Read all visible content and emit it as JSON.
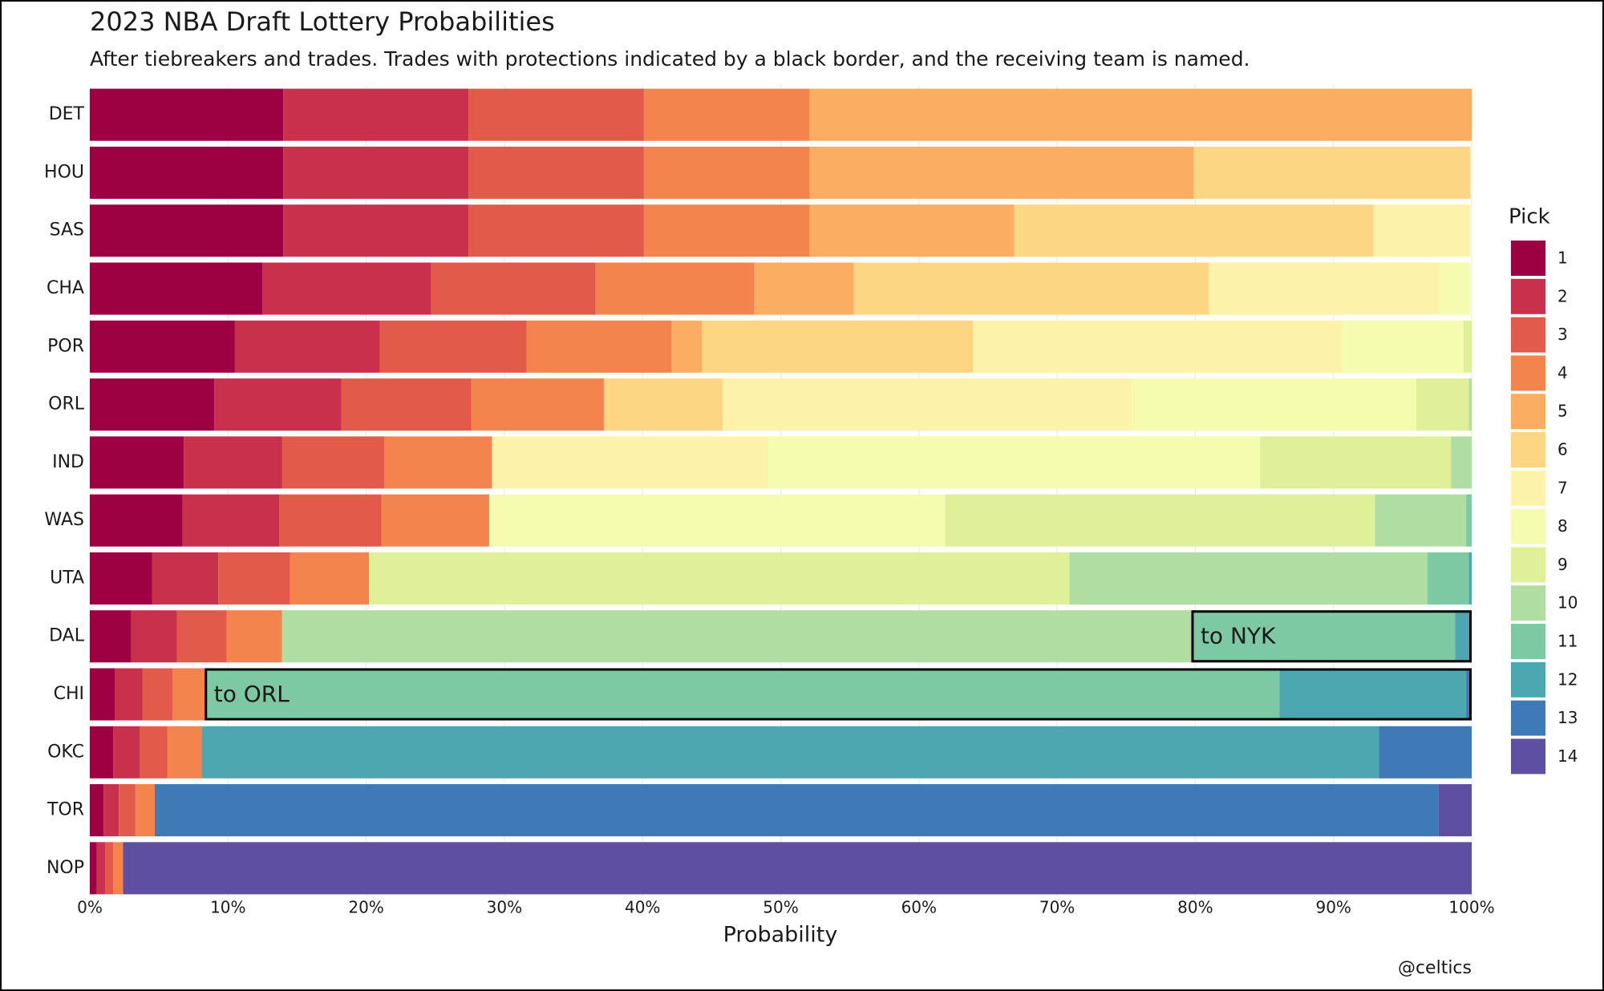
{
  "chart_data": {
    "type": "stacked_barh",
    "title": "2023 NBA Draft Lottery Probabilities",
    "subtitle": "After tiebreakers and trades. Trades with protections indicated by a black border, and the receiving team is named.",
    "x_label": "Probability",
    "credit": "@celtics",
    "legend_title": "Pick",
    "legend_position": "right",
    "grid": true,
    "xlim": [
      0,
      100
    ],
    "xticks": [
      {
        "value": 0,
        "label": "0%"
      },
      {
        "value": 10,
        "label": "10%"
      },
      {
        "value": 20,
        "label": "20%"
      },
      {
        "value": 30,
        "label": "30%"
      },
      {
        "value": 40,
        "label": "40%"
      },
      {
        "value": 50,
        "label": "50%"
      },
      {
        "value": 60,
        "label": "60%"
      },
      {
        "value": 70,
        "label": "70%"
      },
      {
        "value": 80,
        "label": "80%"
      },
      {
        "value": 90,
        "label": "90%"
      },
      {
        "value": 100,
        "label": "100%"
      }
    ],
    "categories": [
      "DET",
      "HOU",
      "SAS",
      "CHA",
      "POR",
      "ORL",
      "IND",
      "WAS",
      "UTA",
      "DAL",
      "CHI",
      "OKC",
      "TOR",
      "NOP"
    ],
    "series": [
      {
        "name": "1",
        "color": "#9e0142",
        "values": [
          14.0,
          14.0,
          14.0,
          12.5,
          10.5,
          9.0,
          6.8,
          6.7,
          4.5,
          3.0,
          1.8,
          1.7,
          1.0,
          0.5
        ]
      },
      {
        "name": "2",
        "color": "#c8304b",
        "values": [
          13.4,
          13.4,
          13.4,
          12.2,
          10.5,
          9.2,
          7.1,
          7.0,
          4.8,
          3.3,
          2.0,
          1.9,
          1.1,
          0.6
        ]
      },
      {
        "name": "3",
        "color": "#e25a4a",
        "values": [
          12.7,
          12.7,
          12.7,
          11.9,
          10.6,
          9.4,
          7.4,
          7.4,
          5.2,
          3.6,
          2.2,
          2.0,
          1.2,
          0.6
        ]
      },
      {
        "name": "4",
        "color": "#f4844d",
        "values": [
          12.0,
          12.0,
          12.0,
          11.5,
          10.5,
          9.6,
          7.8,
          7.8,
          5.7,
          4.0,
          2.4,
          2.5,
          1.4,
          0.7
        ]
      },
      {
        "name": "5",
        "color": "#fbae62",
        "values": [
          47.9,
          27.8,
          14.8,
          7.2,
          2.2,
          0,
          0,
          0,
          0,
          0,
          0,
          0,
          0,
          0
        ]
      },
      {
        "name": "6",
        "color": "#fdd683",
        "values": [
          0,
          20.0,
          26.0,
          25.7,
          19.6,
          8.6,
          0,
          0,
          0,
          0,
          0,
          0,
          0,
          0
        ]
      },
      {
        "name": "7",
        "color": "#fdf2a9",
        "values": [
          0,
          0,
          7.0,
          16.7,
          26.7,
          29.6,
          20.0,
          0,
          0,
          0,
          0,
          0,
          0,
          0
        ]
      },
      {
        "name": "8",
        "color": "#f5fbaf",
        "values": [
          0,
          0,
          0,
          2.2,
          8.8,
          20.6,
          35.6,
          33.0,
          0,
          0,
          0,
          0,
          0,
          0
        ]
      },
      {
        "name": "9",
        "color": "#dff099",
        "values": [
          0,
          0,
          0,
          0,
          0.6,
          3.8,
          13.8,
          31.1,
          50.7,
          0,
          0,
          0,
          0,
          0
        ]
      },
      {
        "name": "10",
        "color": "#b0dea2",
        "values": [
          0,
          0,
          0,
          0,
          0,
          0.2,
          1.5,
          6.6,
          25.9,
          65.9,
          0,
          0,
          0,
          0
        ]
      },
      {
        "name": "11",
        "color": "#7cc9a3",
        "values": [
          0,
          0,
          0,
          0,
          0,
          0,
          0,
          0.4,
          3.0,
          19.0,
          77.7,
          0,
          0,
          0
        ]
      },
      {
        "name": "12",
        "color": "#4ca7b1",
        "values": [
          0,
          0,
          0,
          0,
          0,
          0,
          0,
          0,
          0.2,
          1.2,
          13.5,
          85.2,
          0,
          0
        ]
      },
      {
        "name": "13",
        "color": "#3f7ab6",
        "values": [
          0,
          0,
          0,
          0,
          0,
          0,
          0,
          0,
          0,
          0,
          0.4,
          6.7,
          92.9,
          0
        ]
      },
      {
        "name": "14",
        "color": "#5e4fa2",
        "values": [
          0,
          0,
          0,
          0,
          0,
          0,
          0,
          0,
          0,
          0,
          0,
          0,
          2.4,
          97.6
        ]
      }
    ],
    "annotations": [
      {
        "text": "to NYK",
        "category": "DAL",
        "series": "11"
      },
      {
        "text": "to ORL",
        "category": "CHI",
        "series": "5"
      }
    ]
  }
}
